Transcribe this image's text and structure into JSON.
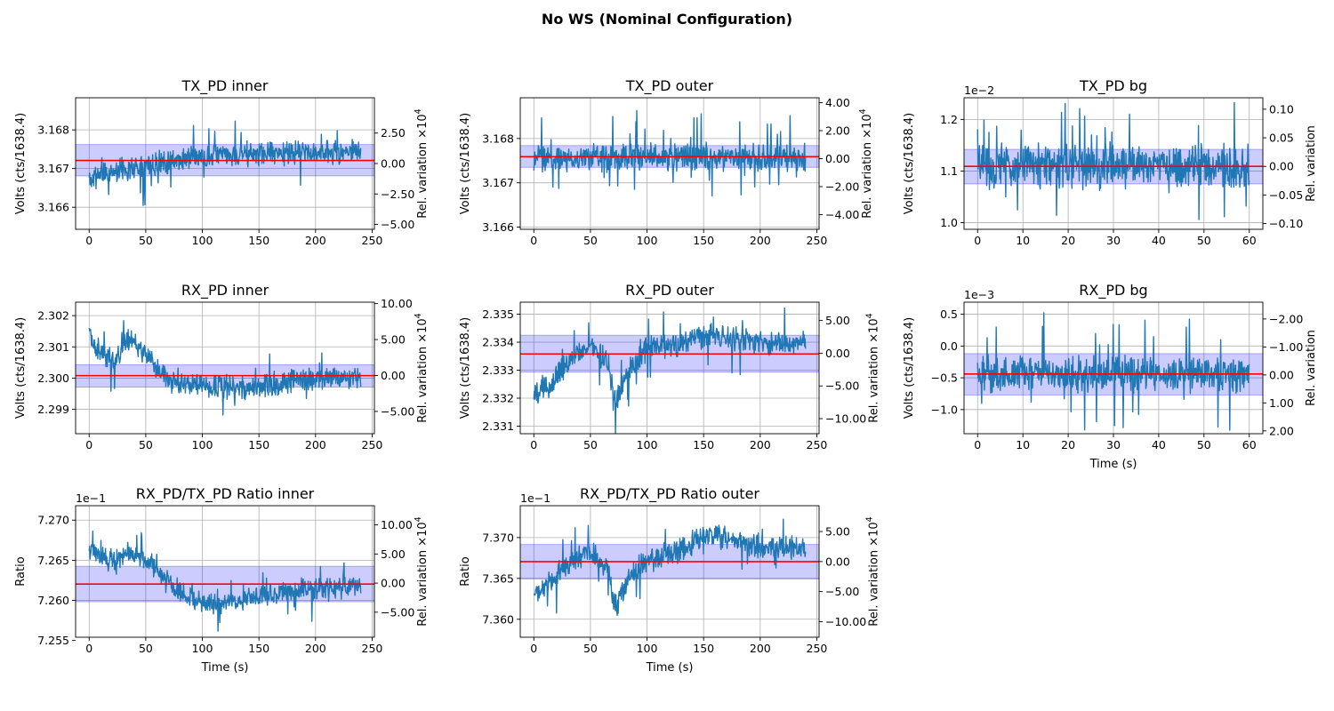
{
  "figure": {
    "title": "No WS (Nominal Configuration)"
  },
  "colors": {
    "signal": "#1f77b4",
    "mean_line": "#ff0000",
    "band_fill": "#0000ff",
    "grid": "#b0b0b0"
  },
  "chart_data": [
    {
      "id": "tx-inner",
      "type": "line",
      "title": "TX_PD inner",
      "xlabel": "",
      "ylabel": "Volts (cts/1638.4)",
      "y2label": "Rel. variation ×10",
      "y2label_exp": "4",
      "offset_label": "",
      "xlim": [
        -12,
        252
      ],
      "ylim": [
        3.16543,
        3.16883
      ],
      "xticks": [
        0,
        50,
        100,
        150,
        200,
        250
      ],
      "xtick_labels": [
        "0",
        "50",
        "100",
        "150",
        "200",
        "250"
      ],
      "yticks": [
        3.166,
        3.167,
        3.168
      ],
      "ytick_labels": [
        "3.166",
        "3.167",
        "3.168"
      ],
      "y2ticks": [
        -5.0,
        -2.5,
        0.0,
        2.5
      ],
      "y2tick_labels": [
        "−5.00",
        "−2.50",
        "0.00",
        "2.50"
      ],
      "y2lim": [
        -5.4,
        5.4
      ],
      "mean": 3.16721,
      "band": [
        3.16681,
        3.16762
      ],
      "series": {
        "x_range": [
          0,
          240
        ],
        "n": 600,
        "seed": 11,
        "segments": [
          [
            0,
            3.16675
          ],
          [
            25,
            3.16695
          ],
          [
            50,
            3.1671
          ],
          [
            80,
            3.16725
          ],
          [
            110,
            3.16735
          ],
          [
            160,
            3.1674
          ],
          [
            240,
            3.16742
          ]
        ],
        "noise": 0.00022,
        "spike": 0.0009
      }
    },
    {
      "id": "tx-outer",
      "type": "line",
      "title": "TX_PD outer",
      "xlabel": "",
      "ylabel": "Volts (cts/1638.4)",
      "y2label": "Rel. variation ×10",
      "y2label_exp": "4",
      "offset_label": "",
      "xlim": [
        -12,
        252
      ],
      "ylim": [
        3.16595,
        3.16892
      ],
      "xticks": [
        0,
        50,
        100,
        150,
        200,
        250
      ],
      "xtick_labels": [
        "0",
        "50",
        "100",
        "150",
        "200",
        "250"
      ],
      "yticks": [
        3.166,
        3.167,
        3.168
      ],
      "ytick_labels": [
        "3.166",
        "3.167",
        "3.168"
      ],
      "y2ticks": [
        -4.0,
        -2.0,
        0.0,
        2.0,
        4.0
      ],
      "y2tick_labels": [
        "−4.00",
        "−2.00",
        "0.00",
        "2.00",
        "4.00"
      ],
      "y2lim": [
        -5.05,
        4.35
      ],
      "mean": 3.16759,
      "band": [
        3.16735,
        3.16784
      ],
      "series": {
        "x_range": [
          0,
          240
        ],
        "n": 600,
        "seed": 23,
        "segments": [
          [
            0,
            3.16757
          ],
          [
            240,
            3.16759
          ]
        ],
        "noise": 0.00022,
        "spike": 0.0009
      }
    },
    {
      "id": "tx-bg",
      "type": "line",
      "title": "TX_PD bg",
      "xlabel": "",
      "ylabel": "Volts (cts/1638.4)",
      "y2label": "Rel. variation",
      "y2label_exp": "",
      "offset_label": "1e−2",
      "xlim": [
        -3,
        63
      ],
      "ylim": [
        0.987,
        1.242
      ],
      "xticks": [
        0,
        10,
        20,
        30,
        40,
        50,
        60
      ],
      "xtick_labels": [
        "0",
        "10",
        "20",
        "30",
        "40",
        "50",
        "60"
      ],
      "yticks": [
        1.0,
        1.1,
        1.2
      ],
      "ytick_labels": [
        "1.0",
        "1.1",
        "1.2"
      ],
      "y2ticks": [
        -0.1,
        -0.05,
        0.0,
        0.05,
        0.1
      ],
      "y2tick_labels": [
        "−0.10",
        "−0.05",
        "0.00",
        "0.05",
        "0.10"
      ],
      "y2lim": [
        -0.11,
        0.12
      ],
      "mean": 1.109,
      "band": [
        1.075,
        1.142
      ],
      "series": {
        "x_range": [
          0,
          60
        ],
        "n": 600,
        "seed": 37,
        "segments": [
          [
            0,
            1.11
          ],
          [
            60,
            1.11
          ]
        ],
        "noise": 0.03,
        "spike": 0.1
      }
    },
    {
      "id": "rx-inner",
      "type": "line",
      "title": "RX_PD inner",
      "xlabel": "",
      "ylabel": "Volts (cts/1638.4)",
      "y2label": "Rel. variation ×10",
      "y2label_exp": "4",
      "offset_label": "",
      "xlim": [
        -12,
        252
      ],
      "ylim": [
        2.29822,
        2.30243
      ],
      "xticks": [
        0,
        50,
        100,
        150,
        200,
        250
      ],
      "xtick_labels": [
        "0",
        "50",
        "100",
        "150",
        "200",
        "250"
      ],
      "yticks": [
        2.299,
        2.3,
        2.301,
        2.302
      ],
      "ytick_labels": [
        "2.299",
        "2.300",
        "2.301",
        "2.302"
      ],
      "y2ticks": [
        -5.0,
        0.0,
        5.0,
        10.0
      ],
      "y2tick_labels": [
        "−5.00",
        "0.00",
        "5.00",
        "10.00"
      ],
      "y2lim": [
        -8.1,
        10.2
      ],
      "mean": 2.30008,
      "band": [
        2.29971,
        2.30043
      ],
      "series": {
        "x_range": [
          0,
          240
        ],
        "n": 600,
        "seed": 41,
        "segments": [
          [
            0,
            2.3014
          ],
          [
            10,
            2.3008
          ],
          [
            22,
            2.3005
          ],
          [
            35,
            2.3013
          ],
          [
            50,
            2.3007
          ],
          [
            70,
            2.3
          ],
          [
            90,
            2.29975
          ],
          [
            120,
            2.2997
          ],
          [
            150,
            2.2997
          ],
          [
            180,
            2.29995
          ],
          [
            210,
            2.3
          ],
          [
            240,
            2.30005
          ]
        ],
        "noise": 0.00028,
        "spike": 0.0009
      }
    },
    {
      "id": "rx-outer",
      "type": "line",
      "title": "RX_PD outer",
      "xlabel": "",
      "ylabel": "Volts (cts/1638.4)",
      "y2label": "Rel. variation ×10",
      "y2label_exp": "4",
      "offset_label": "",
      "xlim": [
        -12,
        252
      ],
      "ylim": [
        2.33073,
        2.33543
      ],
      "xticks": [
        0,
        50,
        100,
        150,
        200,
        250
      ],
      "xtick_labels": [
        "0",
        "50",
        "100",
        "150",
        "200",
        "250"
      ],
      "yticks": [
        2.331,
        2.332,
        2.333,
        2.334,
        2.335
      ],
      "ytick_labels": [
        "2.331",
        "2.332",
        "2.333",
        "2.334",
        "2.335"
      ],
      "y2ticks": [
        -10.0,
        -5.0,
        0.0,
        5.0
      ],
      "y2tick_labels": [
        "−10.00",
        "−5.00",
        "0.00",
        "5.00"
      ],
      "y2lim": [
        -12.3,
        7.8
      ],
      "mean": 2.33358,
      "band": [
        2.33293,
        2.33425
      ],
      "series": {
        "x_range": [
          0,
          240
        ],
        "n": 600,
        "seed": 53,
        "segments": [
          [
            0,
            2.3321
          ],
          [
            15,
            2.3325
          ],
          [
            30,
            2.3333
          ],
          [
            50,
            2.3339
          ],
          [
            65,
            2.3333
          ],
          [
            72,
            2.3318
          ],
          [
            85,
            2.3331
          ],
          [
            100,
            2.3338
          ],
          [
            130,
            2.3339
          ],
          [
            155,
            2.3343
          ],
          [
            200,
            2.334
          ],
          [
            240,
            2.334
          ]
        ],
        "noise": 0.0003,
        "spike": 0.0011
      }
    },
    {
      "id": "rx-bg",
      "type": "line",
      "title": "RX_PD bg",
      "xlabel": "Time (s)",
      "ylabel": "Volts (cts/1638.4)",
      "y2label": "Rel. variation",
      "y2label_exp": "",
      "offset_label": "1e−3",
      "xlim": [
        -3,
        63
      ],
      "ylim": [
        -1.38,
        0.69
      ],
      "xticks": [
        0,
        10,
        20,
        30,
        40,
        50,
        60
      ],
      "xtick_labels": [
        "0",
        "10",
        "20",
        "30",
        "40",
        "50",
        "60"
      ],
      "yticks": [
        -1.0,
        -0.5,
        0.0,
        0.5
      ],
      "ytick_labels": [
        "−1.0",
        "−0.5",
        "0.0",
        "0.5"
      ],
      "y2ticks": [
        -2.0,
        -1.0,
        0.0,
        1.0,
        2.0
      ],
      "y2tick_labels": [
        "−2.00",
        "−1.00",
        "0.00",
        "1.00",
        "2.00"
      ],
      "y2lim": [
        2.1,
        -2.6
      ],
      "y2_inverted": true,
      "mean": -0.44,
      "band": [
        -0.77,
        -0.12
      ],
      "series": {
        "x_range": [
          0,
          60
        ],
        "n": 600,
        "seed": 67,
        "segments": [
          [
            0,
            -0.44
          ],
          [
            60,
            -0.44
          ]
        ],
        "noise": 0.2,
        "spike": 0.95
      }
    },
    {
      "id": "ratio-inner",
      "type": "line",
      "title": "RX_PD/TX_PD Ratio inner",
      "xlabel": "Time (s)",
      "ylabel": "Ratio",
      "y2label": "Rel. variation ×10",
      "y2label_exp": "4",
      "offset_label": "1e−1",
      "xlim": [
        -12,
        252
      ],
      "ylim": [
        7.2554,
        7.2718
      ],
      "xticks": [
        0,
        50,
        100,
        150,
        200,
        250
      ],
      "xtick_labels": [
        "0",
        "50",
        "100",
        "150",
        "200",
        "250"
      ],
      "yticks": [
        7.255,
        7.26,
        7.265,
        7.27
      ],
      "ytick_labels": [
        "7.255",
        "7.260",
        "7.265",
        "7.270"
      ],
      "y2ticks": [
        -5.0,
        0.0,
        5.0,
        10.0
      ],
      "y2tick_labels": [
        "−5.00",
        "0.00",
        "5.00",
        "10.00"
      ],
      "y2lim": [
        -9.3,
        13.3
      ],
      "mean": 7.26203,
      "band": [
        7.25983,
        7.26425
      ],
      "series": {
        "x_range": [
          0,
          240
        ],
        "n": 600,
        "seed": 79,
        "segments": [
          [
            0,
            7.2665
          ],
          [
            12,
            7.2655
          ],
          [
            22,
            7.2648
          ],
          [
            35,
            7.2662
          ],
          [
            55,
            7.2645
          ],
          [
            75,
            7.2615
          ],
          [
            95,
            7.2598
          ],
          [
            120,
            7.2595
          ],
          [
            150,
            7.2605
          ],
          [
            180,
            7.2612
          ],
          [
            210,
            7.2615
          ],
          [
            240,
            7.2618
          ]
        ],
        "noise": 0.001,
        "spike": 0.0035
      }
    },
    {
      "id": "ratio-outer",
      "type": "line",
      "title": "RX_PD/TX_PD Ratio outer",
      "xlabel": "Time (s)",
      "ylabel": "Ratio",
      "y2label": "Rel. variation ×10",
      "y2label_exp": "4",
      "offset_label": "1e−1",
      "xlim": [
        -12,
        252
      ],
      "ylim": [
        7.3578,
        7.3739
      ],
      "xticks": [
        0,
        50,
        100,
        150,
        200,
        250
      ],
      "xtick_labels": [
        "0",
        "50",
        "100",
        "150",
        "200",
        "250"
      ],
      "yticks": [
        7.36,
        7.365,
        7.37
      ],
      "ytick_labels": [
        "7.360",
        "7.365",
        "7.370"
      ],
      "y2ticks": [
        -10.0,
        -5.0,
        0.0,
        5.0
      ],
      "y2tick_labels": [
        "−10.00",
        "−5.00",
        "0.00",
        "5.00"
      ],
      "y2lim": [
        -12.6,
        9.3
      ],
      "mean": 7.36705,
      "band": [
        7.36495,
        7.36915
      ],
      "series": {
        "x_range": [
          0,
          240
        ],
        "n": 600,
        "seed": 97,
        "segments": [
          [
            0,
            7.3632
          ],
          [
            15,
            7.3645
          ],
          [
            30,
            7.3665
          ],
          [
            50,
            7.3685
          ],
          [
            65,
            7.3662
          ],
          [
            72,
            7.3615
          ],
          [
            85,
            7.3655
          ],
          [
            100,
            7.3672
          ],
          [
            130,
            7.3685
          ],
          [
            155,
            7.3705
          ],
          [
            200,
            7.3688
          ],
          [
            240,
            7.3688
          ]
        ],
        "noise": 0.0011,
        "spike": 0.0035
      }
    }
  ]
}
